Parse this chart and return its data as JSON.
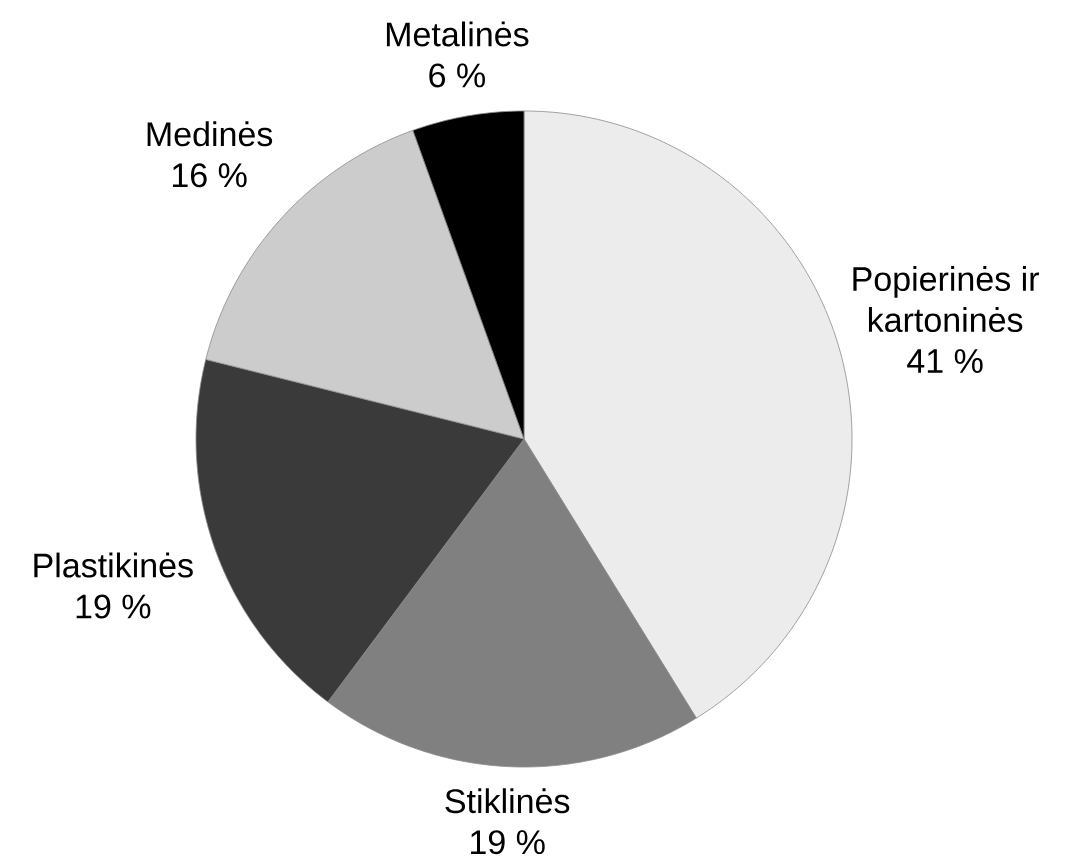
{
  "chart_data": {
    "type": "pie",
    "categories": [
      "Popierinės ir kartoninės",
      "Stiklinės",
      "Plastikinės",
      "Medinės",
      "Metalinės"
    ],
    "values": [
      41.2,
      19.0,
      18.7,
      15.6,
      5.5
    ],
    "value_labels": [
      "41 %",
      "19 %",
      "19 %",
      "16 %",
      "6 %"
    ],
    "colors": [
      "#ececec",
      "#808080",
      "#3a3a3a",
      "#cccccc",
      "#000000"
    ]
  }
}
